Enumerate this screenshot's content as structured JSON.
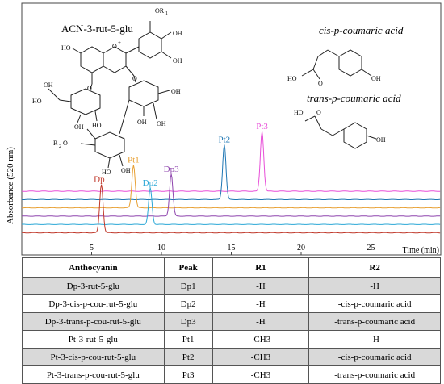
{
  "chart_data": {
    "type": "line",
    "title": "",
    "xlabel": "Time (min)",
    "ylabel": "Absorbance (520 nm)",
    "xlim": [
      0,
      30
    ],
    "x_ticks": [
      5,
      10,
      15,
      20,
      25
    ],
    "grid": false,
    "legend": "none",
    "peaks": [
      {
        "label": "Dp1",
        "rt": 5.7,
        "color": "#c0392b"
      },
      {
        "label": "Pt1",
        "rt": 8.0,
        "color": "#e8a033"
      },
      {
        "label": "Dp2",
        "rt": 9.2,
        "color": "#2aa7d6"
      },
      {
        "label": "Dp3",
        "rt": 10.7,
        "color": "#8e44ad"
      },
      {
        "label": "Pt2",
        "rt": 14.5,
        "color": "#1f77b4"
      },
      {
        "label": "Pt3",
        "rt": 17.2,
        "color": "#e84fd8"
      }
    ],
    "series": [
      {
        "color": "#e84fd8",
        "peak": "Pt3"
      },
      {
        "color": "#1f77b4",
        "peak": "Pt2"
      },
      {
        "color": "#e8a033",
        "peak": "Pt1"
      },
      {
        "color": "#8e44ad",
        "peak": "Dp3"
      },
      {
        "color": "#2aa7d6",
        "peak": "Dp2"
      },
      {
        "color": "#c0392b",
        "peak": "Dp1"
      }
    ]
  },
  "structures": {
    "acn_label": "ACN-3-rut-5-glu",
    "cis_label": "cis-p-coumaric acid",
    "trans_label": "trans-p-coumaric acid"
  },
  "table": {
    "headers": [
      "Anthocyanin",
      "Peak",
      "R1",
      "R2"
    ],
    "rows": [
      {
        "name": "Dp-3-rut-5-glu",
        "peak": "Dp1",
        "r1": "-H",
        "r2": "-H"
      },
      {
        "name": "Dp-3-cis-p-cou-rut-5-glu",
        "peak": "Dp2",
        "r1": "-H",
        "r2": "-cis-p-coumaric acid"
      },
      {
        "name": "Dp-3-trans-p-cou-rut-5-glu",
        "peak": "Dp3",
        "r1": "-H",
        "r2": "-trans-p-coumaric acid"
      },
      {
        "name": "Pt-3-rut-5-glu",
        "peak": "Pt1",
        "r1": "-CH3",
        "r2": "-H"
      },
      {
        "name": "Pt-3-cis-p-cou-rut-5-glu",
        "peak": "Pt2",
        "r1": "-CH3",
        "r2": "-cis-p-coumaric acid"
      },
      {
        "name": "Pt-3-trans-p-cou-rut-5-glu",
        "peak": "Pt3",
        "r1": "-CH3",
        "r2": "-trans-p-coumaric acid"
      }
    ]
  }
}
